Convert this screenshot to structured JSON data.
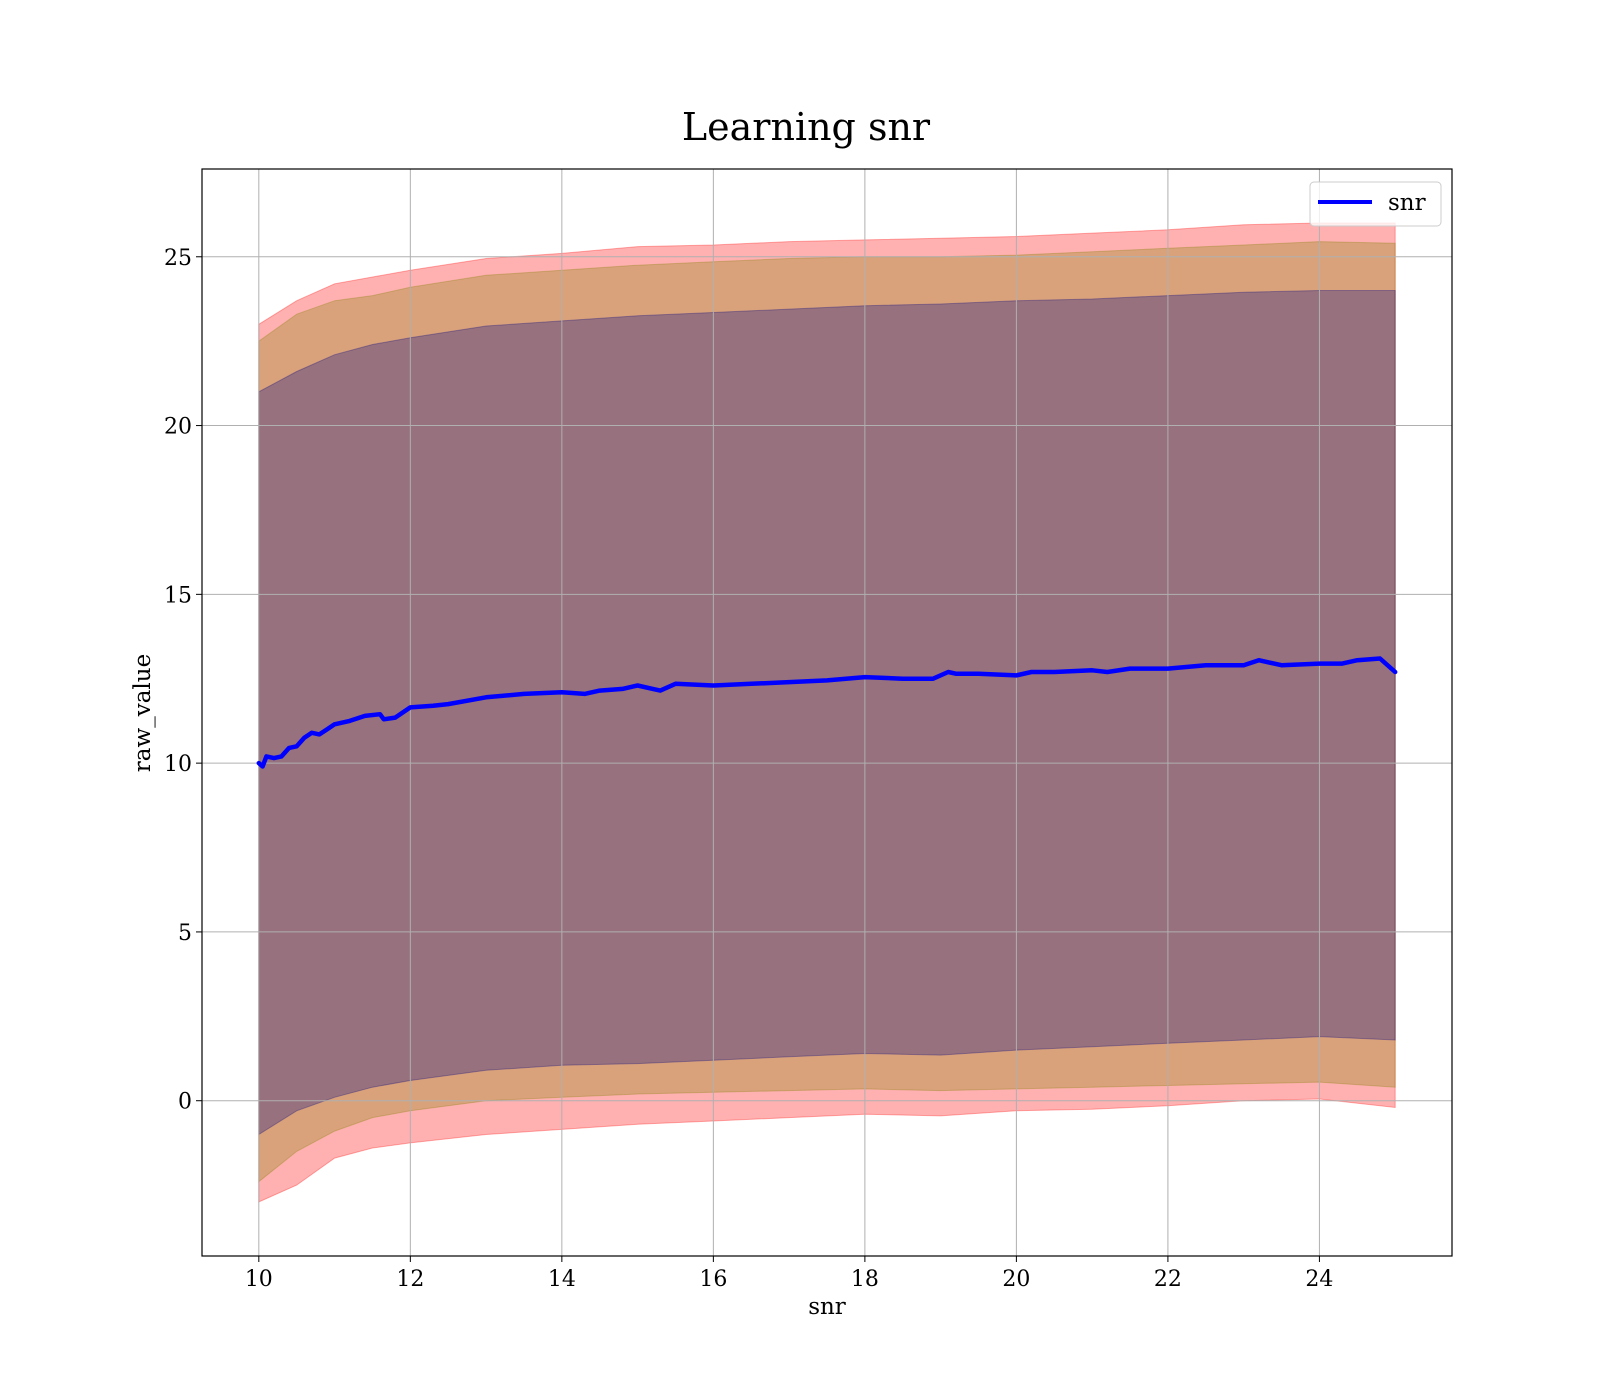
{
  "chart_data": {
    "type": "line",
    "title": "Learning snr",
    "xlabel": "snr",
    "ylabel": "raw_value",
    "xlim": [
      9.25,
      25.75
    ],
    "ylim": [
      -4.6,
      27.6
    ],
    "xticks": [
      10,
      12,
      14,
      16,
      18,
      20,
      22,
      24
    ],
    "yticks": [
      0,
      5,
      10,
      15,
      20,
      25
    ],
    "grid": true,
    "legend_position": "top-right",
    "series": [
      {
        "name": "snr",
        "color": "#0000ff",
        "x": [
          10.0,
          10.05,
          10.1,
          10.2,
          10.3,
          10.4,
          10.5,
          10.6,
          10.7,
          10.8,
          10.9,
          11.0,
          11.2,
          11.4,
          11.6,
          11.65,
          11.8,
          12.0,
          12.3,
          12.5,
          13.0,
          13.5,
          14.0,
          14.3,
          14.5,
          14.8,
          15.0,
          15.2,
          15.3,
          15.5,
          16.0,
          16.5,
          17.0,
          17.5,
          18.0,
          18.5,
          18.9,
          19.1,
          19.2,
          19.5,
          20.0,
          20.2,
          20.5,
          21.0,
          21.2,
          21.5,
          22.0,
          22.5,
          23.0,
          23.2,
          23.5,
          24.0,
          24.3,
          24.5,
          24.8,
          25.0
        ],
        "values": [
          10.0,
          9.9,
          10.2,
          10.15,
          10.2,
          10.45,
          10.5,
          10.75,
          10.9,
          10.85,
          11.0,
          11.15,
          11.25,
          11.4,
          11.45,
          11.3,
          11.35,
          11.65,
          11.7,
          11.75,
          11.95,
          12.05,
          12.1,
          12.05,
          12.15,
          12.2,
          12.3,
          12.2,
          12.15,
          12.35,
          12.3,
          12.35,
          12.4,
          12.45,
          12.55,
          12.5,
          12.5,
          12.7,
          12.65,
          12.65,
          12.6,
          12.7,
          12.7,
          12.75,
          12.7,
          12.8,
          12.8,
          12.9,
          12.9,
          13.05,
          12.9,
          12.95,
          12.95,
          13.05,
          13.1,
          12.7
        ]
      }
    ],
    "bands": [
      {
        "color": "#ff0000",
        "opacity": 0.31,
        "x": [
          10.0,
          10.5,
          11.0,
          11.5,
          12.0,
          13.0,
          14.0,
          15.0,
          16.0,
          17.0,
          18.0,
          19.0,
          20.0,
          21.0,
          22.0,
          23.0,
          24.0,
          25.0
        ],
        "upper": [
          23.0,
          23.7,
          24.2,
          24.4,
          24.6,
          24.95,
          25.1,
          25.3,
          25.35,
          25.45,
          25.5,
          25.55,
          25.6,
          25.7,
          25.8,
          25.95,
          26.0,
          26.0
        ],
        "lower": [
          -3.0,
          -2.5,
          -1.7,
          -1.4,
          -1.25,
          -1.0,
          -0.85,
          -0.7,
          -0.6,
          -0.5,
          -0.4,
          -0.45,
          -0.3,
          -0.25,
          -0.15,
          0.0,
          0.05,
          -0.2
        ]
      },
      {
        "color": "#808000",
        "opacity": 0.3,
        "x": [
          10.0,
          10.5,
          11.0,
          11.5,
          12.0,
          13.0,
          14.0,
          15.0,
          16.0,
          17.0,
          18.0,
          19.0,
          20.0,
          21.0,
          22.0,
          23.0,
          24.0,
          25.0
        ],
        "upper": [
          22.5,
          23.3,
          23.7,
          23.85,
          24.1,
          24.45,
          24.6,
          24.75,
          24.85,
          24.95,
          25.0,
          25.0,
          25.05,
          25.15,
          25.25,
          25.35,
          25.45,
          25.4
        ],
        "lower": [
          -2.4,
          -1.5,
          -0.9,
          -0.5,
          -0.3,
          0.0,
          0.1,
          0.2,
          0.25,
          0.3,
          0.35,
          0.3,
          0.35,
          0.4,
          0.45,
          0.5,
          0.55,
          0.4
        ]
      },
      {
        "color": "#000080",
        "opacity": 0.3,
        "x": [
          10.0,
          10.5,
          11.0,
          11.5,
          12.0,
          13.0,
          14.0,
          15.0,
          16.0,
          17.0,
          18.0,
          19.0,
          20.0,
          21.0,
          22.0,
          23.0,
          24.0,
          25.0
        ],
        "upper": [
          21.0,
          21.6,
          22.1,
          22.4,
          22.6,
          22.95,
          23.1,
          23.25,
          23.35,
          23.45,
          23.55,
          23.6,
          23.7,
          23.75,
          23.85,
          23.95,
          24.0,
          24.0
        ],
        "lower": [
          -1.0,
          -0.3,
          0.1,
          0.4,
          0.6,
          0.9,
          1.05,
          1.1,
          1.2,
          1.3,
          1.4,
          1.35,
          1.5,
          1.6,
          1.7,
          1.8,
          1.9,
          1.8
        ]
      }
    ]
  }
}
